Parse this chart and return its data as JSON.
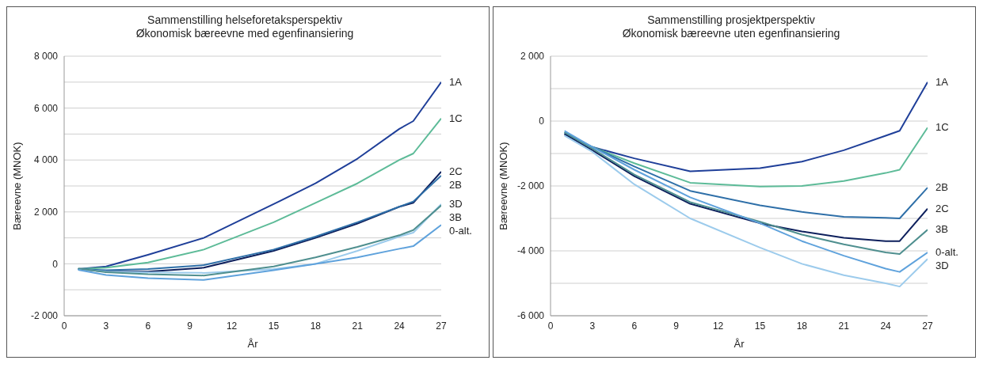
{
  "chart_data": [
    {
      "type": "line",
      "title": "Sammenstilling helseforetaksperspektiv",
      "subtitle": "Økonomisk bæreevne med egenfinansiering",
      "xlabel": "År",
      "ylabel": "Bæreevne (MNOK)",
      "x": [
        1,
        3,
        6,
        10,
        15,
        18,
        21,
        24,
        25,
        27
      ],
      "series": [
        {
          "name": "1A",
          "color": "#1f3f99",
          "values": [
            -200,
            -100,
            350,
            1000,
            2300,
            3100,
            4050,
            5200,
            5500,
            7000
          ]
        },
        {
          "name": "1C",
          "color": "#5dbb98",
          "values": [
            -200,
            -150,
            50,
            550,
            1600,
            2350,
            3100,
            4000,
            4250,
            5600
          ]
        },
        {
          "name": "2C",
          "color": "#0d1f5c",
          "values": [
            -200,
            -300,
            -300,
            -150,
            500,
            1000,
            1550,
            2200,
            2350,
            3550
          ]
        },
        {
          "name": "2B",
          "color": "#2e6fa8",
          "values": [
            -200,
            -250,
            -200,
            -50,
            550,
            1050,
            1600,
            2200,
            2400,
            3400
          ]
        },
        {
          "name": "3D",
          "color": "#9ccbec",
          "values": [
            -200,
            -300,
            -330,
            -350,
            -200,
            0,
            500,
            1050,
            1200,
            2300
          ]
        },
        {
          "name": "3B",
          "color": "#4f8f8f",
          "values": [
            -180,
            -320,
            -400,
            -450,
            -100,
            250,
            650,
            1100,
            1300,
            2250
          ]
        },
        {
          "name": "0-alt.",
          "color": "#5fa2dc",
          "values": [
            -230,
            -430,
            -550,
            -620,
            -250,
            0,
            250,
            580,
            680,
            1500
          ]
        }
      ],
      "xlim": [
        0,
        27
      ],
      "xticks": [
        0,
        3,
        6,
        9,
        12,
        15,
        18,
        21,
        24,
        27
      ],
      "ylim": [
        -2000,
        8000
      ],
      "yticks": [
        {
          "value": -2000,
          "label": "-2 000"
        },
        {
          "value": -1000,
          "label": null
        },
        0,
        {
          "value": 1000,
          "label": null
        },
        {
          "value": 2000,
          "label": "2 000"
        },
        {
          "value": 3000,
          "label": null
        },
        {
          "value": 4000,
          "label": "4 000"
        },
        {
          "value": 5000,
          "label": null
        },
        {
          "value": 6000,
          "label": "6 000"
        },
        {
          "value": 7000,
          "label": null
        },
        {
          "value": 8000,
          "label": "8 000"
        }
      ],
      "grid": "y",
      "legend": false,
      "marker": "none",
      "line_style": "solid"
    },
    {
      "type": "line",
      "title": "Sammenstilling prosjektperspektiv",
      "subtitle": "Økonomisk bæreevne uten egenfinansiering",
      "xlabel": "År",
      "ylabel": "Bæreevne (MNOK)",
      "x": [
        1,
        3,
        6,
        10,
        15,
        18,
        21,
        24,
        25,
        27
      ],
      "series": [
        {
          "name": "1A",
          "color": "#1f3f99",
          "values": [
            -400,
            -800,
            -1150,
            -1550,
            -1450,
            -1250,
            -900,
            -450,
            -300,
            1200
          ]
        },
        {
          "name": "1C",
          "color": "#5dbb98",
          "values": [
            -350,
            -800,
            -1300,
            -1900,
            -2020,
            -2000,
            -1850,
            -1600,
            -1500,
            -200
          ]
        },
        {
          "name": "2B",
          "color": "#2e6fa8",
          "values": [
            -350,
            -800,
            -1400,
            -2150,
            -2600,
            -2800,
            -2950,
            -2980,
            -3000,
            -2050
          ]
        },
        {
          "name": "2C",
          "color": "#0d1f5c",
          "values": [
            -400,
            -900,
            -1700,
            -2550,
            -3150,
            -3400,
            -3600,
            -3700,
            -3700,
            -2700
          ]
        },
        {
          "name": "3B",
          "color": "#4f8f8f",
          "values": [
            -350,
            -850,
            -1650,
            -2500,
            -3100,
            -3500,
            -3800,
            -4050,
            -4100,
            -3350
          ]
        },
        {
          "name": "0-alt.",
          "color": "#5fa2dc",
          "values": [
            -300,
            -800,
            -1500,
            -2350,
            -3150,
            -3700,
            -4150,
            -4550,
            -4650,
            -4050
          ]
        },
        {
          "name": "3D",
          "color": "#9ccbec",
          "values": [
            -450,
            -950,
            -1950,
            -3000,
            -3900,
            -4400,
            -4750,
            -5000,
            -5100,
            -4250
          ]
        }
      ],
      "xlim": [
        0,
        27
      ],
      "xticks": [
        0,
        3,
        6,
        9,
        12,
        15,
        18,
        21,
        24,
        27
      ],
      "ylim": [
        -6000,
        2000
      ],
      "yticks": [
        {
          "value": -6000,
          "label": "-6 000"
        },
        {
          "value": -5000,
          "label": null
        },
        {
          "value": -4000,
          "label": "-4 000"
        },
        {
          "value": -3000,
          "label": null
        },
        {
          "value": -2000,
          "label": "-2 000"
        },
        {
          "value": -1000,
          "label": null
        },
        0,
        {
          "value": 1000,
          "label": null
        },
        {
          "value": 2000,
          "label": "2 000"
        }
      ],
      "grid": "y",
      "legend": false,
      "marker": "none",
      "line_style": "solid"
    }
  ]
}
